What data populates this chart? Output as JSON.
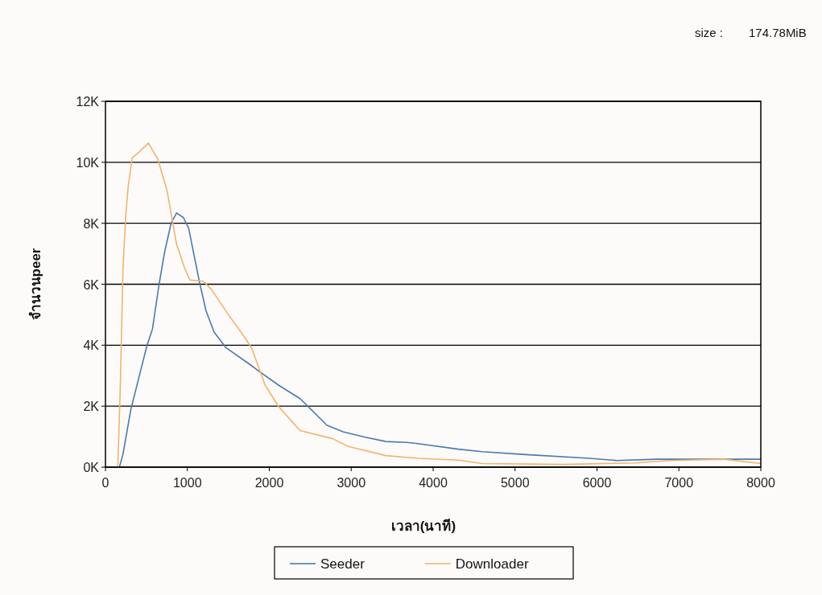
{
  "chart_data": {
    "type": "line",
    "xlabel": "เวลา(นาที)",
    "ylabel": "จำนวนpeer",
    "annotations": [
      "size :",
      "174.78MiB"
    ],
    "xlim": [
      0,
      8000
    ],
    "ylim": [
      0,
      12000
    ],
    "xticks": [
      0,
      1000,
      2000,
      3000,
      4000,
      5000,
      6000,
      7000,
      8000
    ],
    "yticks": [
      {
        "value": 0,
        "label": "0K"
      },
      {
        "value": 2000,
        "label": "2K"
      },
      {
        "value": 4000,
        "label": "4K"
      },
      {
        "value": 6000,
        "label": "6K"
      },
      {
        "value": 8000,
        "label": "8K"
      },
      {
        "value": 10000,
        "label": "10K"
      },
      {
        "value": 12000,
        "label": "12K"
      }
    ],
    "grid": "y",
    "legend": "bottom",
    "line_style": "solid",
    "series": [
      {
        "name": "Seeder",
        "color": "#4a7ab0",
        "x": [
          170,
          213,
          311,
          409,
          508,
          573,
          655,
          721,
          802,
          868,
          950,
          1015,
          1081,
          1146,
          1228,
          1326,
          1474,
          1752,
          1883,
          2113,
          2375,
          2473,
          2702,
          2899,
          3161,
          3423,
          3685,
          3816,
          4307,
          4600,
          5092,
          5910,
          6238,
          6730,
          8000
        ],
        "values": [
          0,
          420,
          1900,
          2950,
          4000,
          4520,
          6000,
          7050,
          8010,
          8340,
          8190,
          7840,
          6960,
          6090,
          5130,
          4430,
          3910,
          3390,
          3130,
          2690,
          2250,
          1990,
          1380,
          1160,
          990,
          840,
          810,
          770,
          590,
          510,
          420,
          290,
          220,
          260,
          260
        ]
      },
      {
        "name": "Downloader",
        "color": "#f2b36b",
        "x": [
          150,
          180,
          213,
          246,
          278,
          327,
          409,
          524,
          639,
          753,
          868,
          966,
          1031,
          1195,
          1293,
          1490,
          1654,
          1785,
          1949,
          2113,
          2375,
          2768,
          2965,
          3423,
          3816,
          4307,
          4600,
          5583,
          6467,
          6888,
          7549,
          8000
        ],
        "values": [
          0,
          2510,
          6440,
          8190,
          9230,
          10150,
          10330,
          10630,
          10100,
          9060,
          7310,
          6530,
          6140,
          6100,
          5830,
          5040,
          4430,
          3910,
          2690,
          1990,
          1200,
          940,
          680,
          380,
          290,
          230,
          120,
          90,
          140,
          220,
          260,
          120
        ]
      }
    ]
  }
}
